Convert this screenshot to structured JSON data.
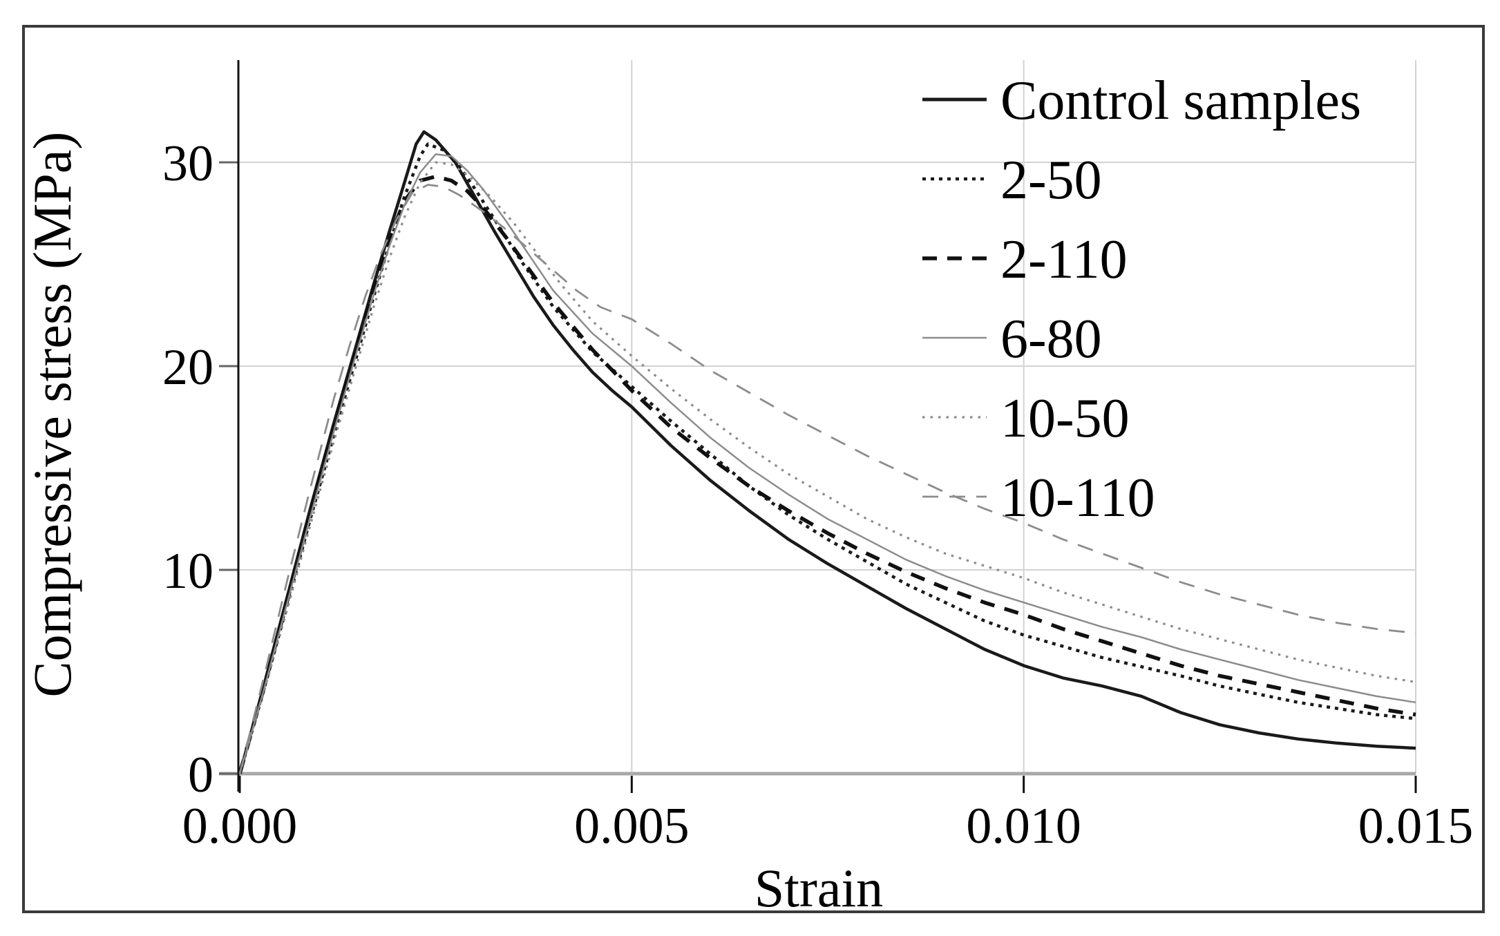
{
  "figure": {
    "background": "#ffffff",
    "border_color": "#3a3a3a"
  },
  "chart_data": {
    "type": "line",
    "title": "",
    "xlabel": "Strain",
    "ylabel": "Compressive stress (MPa)",
    "xlim": [
      0,
      0.015
    ],
    "ylim": [
      0,
      35
    ],
    "grid": true,
    "legend_position": "top-right-inside",
    "x_ticks": [
      0,
      0.005,
      0.01,
      0.015
    ],
    "x_tick_labels": [
      "0.000",
      "0.005",
      "0.010",
      "0.015"
    ],
    "y_ticks": [
      0,
      10,
      20,
      30
    ],
    "y_tick_labels": [
      "0",
      "10",
      "20",
      "30"
    ],
    "series": [
      {
        "name": "Control samples",
        "color": "#1a1a1a",
        "style": "solid",
        "width": 4.5,
        "dash": "",
        "points": [
          [
            0,
            0
          ],
          [
            0.0003,
            4.2
          ],
          [
            0.0006,
            8.6
          ],
          [
            0.0009,
            13
          ],
          [
            0.0012,
            17.2
          ],
          [
            0.0015,
            21.2
          ],
          [
            0.0017,
            23.9
          ],
          [
            0.0019,
            26.5
          ],
          [
            0.0021,
            29
          ],
          [
            0.00225,
            30.9
          ],
          [
            0.00235,
            31.5
          ],
          [
            0.0025,
            31.1
          ],
          [
            0.00275,
            30
          ],
          [
            0.003,
            28.3
          ],
          [
            0.00325,
            26.6
          ],
          [
            0.0035,
            25
          ],
          [
            0.00375,
            23.4
          ],
          [
            0.004,
            22
          ],
          [
            0.00425,
            20.8
          ],
          [
            0.0045,
            19.7
          ],
          [
            0.00475,
            18.8
          ],
          [
            0.005,
            18
          ],
          [
            0.0055,
            16.1
          ],
          [
            0.006,
            14.4
          ],
          [
            0.0065,
            12.9
          ],
          [
            0.007,
            11.5
          ],
          [
            0.0075,
            10.3
          ],
          [
            0.008,
            9.2
          ],
          [
            0.0085,
            8.1
          ],
          [
            0.009,
            7.1
          ],
          [
            0.0095,
            6.1
          ],
          [
            0.01,
            5.3
          ],
          [
            0.0105,
            4.7
          ],
          [
            0.011,
            4.3
          ],
          [
            0.0115,
            3.8
          ],
          [
            0.012,
            3
          ],
          [
            0.0125,
            2.4
          ],
          [
            0.013,
            2
          ],
          [
            0.0135,
            1.7
          ],
          [
            0.014,
            1.5
          ],
          [
            0.0145,
            1.35
          ],
          [
            0.015,
            1.25
          ]
        ]
      },
      {
        "name": "2-50",
        "color": "#1a1a1a",
        "style": "dotted",
        "width": 4.5,
        "dash": "5 7",
        "points": [
          [
            0,
            0
          ],
          [
            0.0003,
            4
          ],
          [
            0.0006,
            8.2
          ],
          [
            0.0009,
            12.5
          ],
          [
            0.0012,
            16.6
          ],
          [
            0.0015,
            20.6
          ],
          [
            0.0017,
            23.3
          ],
          [
            0.0019,
            25.9
          ],
          [
            0.0021,
            28.3
          ],
          [
            0.0023,
            30.3
          ],
          [
            0.0024,
            30.9
          ],
          [
            0.0026,
            30.6
          ],
          [
            0.0028,
            29.8
          ],
          [
            0.003,
            28.7
          ],
          [
            0.0033,
            26.9
          ],
          [
            0.0036,
            25.1
          ],
          [
            0.004,
            22.9
          ],
          [
            0.0045,
            20.7
          ],
          [
            0.005,
            19
          ],
          [
            0.0055,
            17.3
          ],
          [
            0.006,
            15.7
          ],
          [
            0.0065,
            14.1
          ],
          [
            0.007,
            12.7
          ],
          [
            0.0075,
            11.5
          ],
          [
            0.008,
            10.4
          ],
          [
            0.0085,
            9.3
          ],
          [
            0.009,
            8.4
          ],
          [
            0.0095,
            7.5
          ],
          [
            0.01,
            6.8
          ],
          [
            0.011,
            5.7
          ],
          [
            0.012,
            4.8
          ],
          [
            0.0125,
            4.3
          ],
          [
            0.013,
            3.9
          ],
          [
            0.0135,
            3.5
          ],
          [
            0.014,
            3.2
          ],
          [
            0.0145,
            2.9
          ],
          [
            0.015,
            2.7
          ]
        ]
      },
      {
        "name": "2-110",
        "color": "#111111",
        "style": "dashed",
        "width": 5.5,
        "dash": "21 15",
        "points": [
          [
            0,
            0
          ],
          [
            0.0003,
            4.1
          ],
          [
            0.0006,
            8.4
          ],
          [
            0.0009,
            12.8
          ],
          [
            0.0012,
            17
          ],
          [
            0.0015,
            21
          ],
          [
            0.0017,
            23.8
          ],
          [
            0.0019,
            26.2
          ],
          [
            0.0021,
            28.1
          ],
          [
            0.0023,
            29.1
          ],
          [
            0.0025,
            29.3
          ],
          [
            0.0027,
            29.1
          ],
          [
            0.0029,
            28.6
          ],
          [
            0.0031,
            27.8
          ],
          [
            0.0034,
            26.3
          ],
          [
            0.0037,
            24.7
          ],
          [
            0.004,
            23.1
          ],
          [
            0.0045,
            20.8
          ],
          [
            0.005,
            18.8
          ],
          [
            0.0055,
            17
          ],
          [
            0.006,
            15.5
          ],
          [
            0.0065,
            14.1
          ],
          [
            0.007,
            12.9
          ],
          [
            0.0075,
            11.8
          ],
          [
            0.008,
            10.8
          ],
          [
            0.0085,
            9.9
          ],
          [
            0.009,
            9.1
          ],
          [
            0.0095,
            8.4
          ],
          [
            0.01,
            7.8
          ],
          [
            0.0105,
            7.1
          ],
          [
            0.011,
            6.5
          ],
          [
            0.0115,
            5.9
          ],
          [
            0.012,
            5.3
          ],
          [
            0.0125,
            4.8
          ],
          [
            0.013,
            4.4
          ],
          [
            0.0135,
            4
          ],
          [
            0.014,
            3.6
          ],
          [
            0.0145,
            3.2
          ],
          [
            0.015,
            2.9
          ]
        ]
      },
      {
        "name": "6-80",
        "color": "#8c8c8c",
        "style": "solid",
        "width": 2.5,
        "dash": "",
        "points": [
          [
            0,
            0
          ],
          [
            0.0003,
            4
          ],
          [
            0.0006,
            8.3
          ],
          [
            0.0009,
            12.6
          ],
          [
            0.0012,
            16.8
          ],
          [
            0.0015,
            20.8
          ],
          [
            0.0017,
            23.4
          ],
          [
            0.0019,
            25.8
          ],
          [
            0.0021,
            27.9
          ],
          [
            0.0023,
            29.5
          ],
          [
            0.0025,
            30.4
          ],
          [
            0.0027,
            30.3
          ],
          [
            0.0029,
            29.6
          ],
          [
            0.0031,
            28.7
          ],
          [
            0.0034,
            27.1
          ],
          [
            0.0037,
            25.4
          ],
          [
            0.004,
            23.7
          ],
          [
            0.0045,
            21.6
          ],
          [
            0.005,
            20
          ],
          [
            0.0055,
            18.2
          ],
          [
            0.006,
            16.5
          ],
          [
            0.0065,
            15
          ],
          [
            0.007,
            13.7
          ],
          [
            0.0075,
            12.5
          ],
          [
            0.008,
            11.5
          ],
          [
            0.0085,
            10.5
          ],
          [
            0.009,
            9.7
          ],
          [
            0.0095,
            9
          ],
          [
            0.01,
            8.4
          ],
          [
            0.0105,
            7.8
          ],
          [
            0.011,
            7.2
          ],
          [
            0.0115,
            6.7
          ],
          [
            0.012,
            6.1
          ],
          [
            0.0125,
            5.6
          ],
          [
            0.013,
            5.1
          ],
          [
            0.0135,
            4.6
          ],
          [
            0.014,
            4.2
          ],
          [
            0.0145,
            3.8
          ],
          [
            0.015,
            3.5
          ]
        ]
      },
      {
        "name": "10-50",
        "color": "#8c8c8c",
        "style": "dotted",
        "width": 3.2,
        "dash": "3.5 8",
        "points": [
          [
            0,
            0
          ],
          [
            0.0003,
            3.9
          ],
          [
            0.0006,
            8
          ],
          [
            0.0009,
            12.2
          ],
          [
            0.0012,
            16.3
          ],
          [
            0.0015,
            20.2
          ],
          [
            0.0017,
            22.8
          ],
          [
            0.0019,
            25.2
          ],
          [
            0.0021,
            27.3
          ],
          [
            0.0023,
            29
          ],
          [
            0.0025,
            30
          ],
          [
            0.0027,
            29.9
          ],
          [
            0.0029,
            29.4
          ],
          [
            0.0032,
            28.3
          ],
          [
            0.0035,
            27
          ],
          [
            0.0038,
            25.5
          ],
          [
            0.0041,
            24
          ],
          [
            0.0045,
            22.2
          ],
          [
            0.005,
            20.5
          ],
          [
            0.0055,
            18.9
          ],
          [
            0.006,
            17.4
          ],
          [
            0.0065,
            16
          ],
          [
            0.007,
            14.7
          ],
          [
            0.0075,
            13.6
          ],
          [
            0.008,
            12.5
          ],
          [
            0.0085,
            11.6
          ],
          [
            0.009,
            10.8
          ],
          [
            0.0095,
            10.2
          ],
          [
            0.01,
            9.6
          ],
          [
            0.0105,
            8.9
          ],
          [
            0.011,
            8.3
          ],
          [
            0.0115,
            7.7
          ],
          [
            0.012,
            7.1
          ],
          [
            0.0125,
            6.6
          ],
          [
            0.013,
            6.1
          ],
          [
            0.0135,
            5.6
          ],
          [
            0.014,
            5.2
          ],
          [
            0.0145,
            4.8
          ],
          [
            0.015,
            4.5
          ]
        ]
      },
      {
        "name": "10-110",
        "color": "#8c8c8c",
        "style": "dashed",
        "width": 2.8,
        "dash": "23 16",
        "points": [
          [
            0,
            0
          ],
          [
            0.0003,
            4.6
          ],
          [
            0.0006,
            9.4
          ],
          [
            0.0009,
            14
          ],
          [
            0.0012,
            18.4
          ],
          [
            0.0014,
            21
          ],
          [
            0.0016,
            23.4
          ],
          [
            0.0018,
            25.5
          ],
          [
            0.002,
            27.2
          ],
          [
            0.0022,
            28.5
          ],
          [
            0.0024,
            28.9
          ],
          [
            0.0026,
            28.8
          ],
          [
            0.0028,
            28.4
          ],
          [
            0.0031,
            27.6
          ],
          [
            0.0034,
            26.7
          ],
          [
            0.0037,
            25.7
          ],
          [
            0.004,
            24.7
          ],
          [
            0.0043,
            23.7
          ],
          [
            0.0046,
            22.9
          ],
          [
            0.005,
            22.3
          ],
          [
            0.0055,
            21.1
          ],
          [
            0.006,
            19.8
          ],
          [
            0.0065,
            18.7
          ],
          [
            0.007,
            17.6
          ],
          [
            0.0075,
            16.6
          ],
          [
            0.008,
            15.6
          ],
          [
            0.0085,
            14.7
          ],
          [
            0.009,
            13.8
          ],
          [
            0.0095,
            13
          ],
          [
            0.01,
            12.3
          ],
          [
            0.0105,
            11.5
          ],
          [
            0.011,
            10.8
          ],
          [
            0.0115,
            10.1
          ],
          [
            0.012,
            9.4
          ],
          [
            0.0125,
            8.8
          ],
          [
            0.013,
            8.3
          ],
          [
            0.0135,
            7.8
          ],
          [
            0.014,
            7.4
          ],
          [
            0.0145,
            7.1
          ],
          [
            0.015,
            6.9
          ]
        ]
      }
    ]
  }
}
